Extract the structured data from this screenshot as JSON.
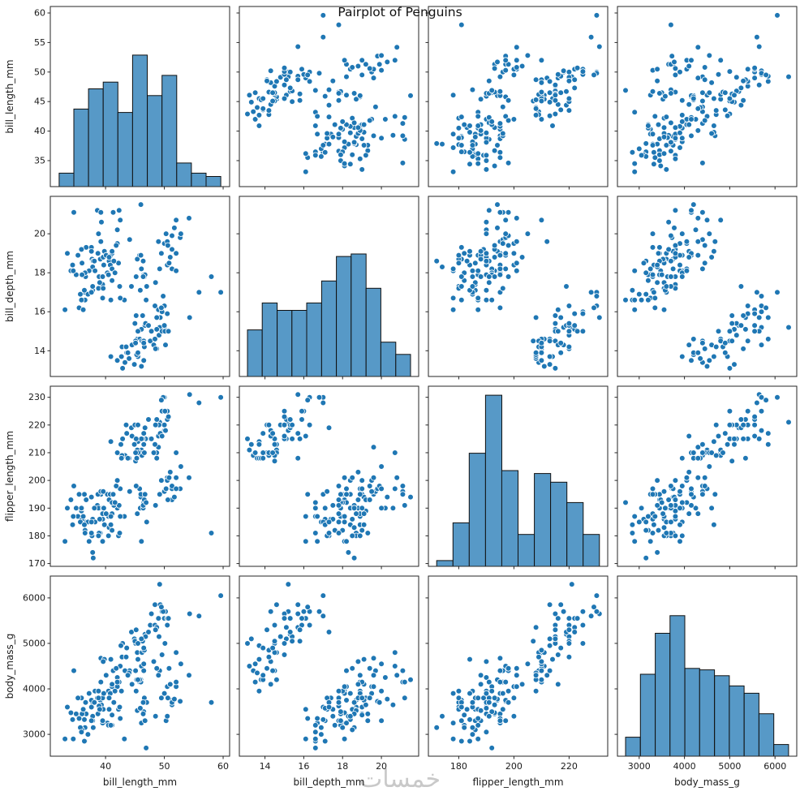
{
  "watermark": "خمسات",
  "chart_data": {
    "type": "scatter-matrix",
    "title": "Pairplot of Penguins",
    "variables": [
      "bill_length_mm",
      "bill_depth_mm",
      "flipper_length_mm",
      "body_mass_g"
    ],
    "legend": "none",
    "grid": false,
    "marker": {
      "color": "#1f77b4",
      "edge": "#ffffff",
      "radius": 3.4
    },
    "hist": {
      "fill": "#5799c7",
      "edge": "#101010"
    },
    "frame_color": "#262626",
    "text_color": "#1a1a1a",
    "axes": {
      "bill_length_mm": {
        "range": [
          30.6,
          61.1
        ],
        "yticks": [
          35,
          40,
          45,
          50,
          55,
          60
        ],
        "xticks": [
          40,
          50,
          60
        ]
      },
      "bill_depth_mm": {
        "range": [
          12.68,
          21.92
        ],
        "yticks": [
          14,
          16,
          18,
          20
        ],
        "xticks": [
          14,
          16,
          18,
          20
        ]
      },
      "flipper_length_mm": {
        "range": [
          169,
          234
        ],
        "yticks": [
          170,
          180,
          190,
          200,
          210,
          220,
          230
        ],
        "xticks": [
          180,
          200,
          220
        ]
      },
      "body_mass_g": {
        "range": [
          2520,
          6480
        ],
        "yticks": [
          3000,
          4000,
          5000,
          6000
        ],
        "xticks": [
          3000,
          4000,
          5000,
          6000
        ]
      }
    },
    "histograms": {
      "bill_length_mm": {
        "bin_edges": [
          32.1,
          34.6,
          37.1,
          39.6,
          42.1,
          44.6,
          47.1,
          49.6,
          52.1,
          54.6,
          57.1,
          59.6
        ],
        "counts": [
          4,
          23,
          29,
          31,
          22,
          39,
          27,
          33,
          7,
          4,
          3
        ],
        "peak_frac": 0.73
      },
      "bill_depth_mm": {
        "bin_edges": [
          13.1,
          13.86,
          14.63,
          15.39,
          16.15,
          16.92,
          17.68,
          18.44,
          19.21,
          19.97,
          20.74,
          21.5
        ],
        "counts": [
          19,
          30,
          27,
          27,
          30,
          39,
          49,
          50,
          36,
          14,
          9
        ],
        "peak_frac": 0.68
      },
      "flipper_length_mm": {
        "bin_edges": [
          172,
          177.9,
          183.8,
          189.7,
          195.6,
          201.5,
          207.4,
          213.3,
          219.2,
          225.1,
          231
        ],
        "counts": [
          2,
          15,
          39,
          59,
          33,
          11,
          32,
          29,
          22,
          11
        ],
        "peak_frac": 0.95
      },
      "body_mass_g": {
        "bin_edges": [
          2700,
          3027,
          3355,
          3682,
          4009,
          4336,
          4664,
          4991,
          5318,
          5645,
          5973,
          6300
        ],
        "counts": [
          13,
          56,
          84,
          96,
          60,
          59,
          55,
          48,
          43,
          29,
          8
        ],
        "peak_frac": 0.78
      }
    },
    "points": [
      [
        39.1,
        18.7,
        181,
        3750
      ],
      [
        39.5,
        17.4,
        186,
        3800
      ],
      [
        40.3,
        18.0,
        195,
        3250
      ],
      [
        36.7,
        19.3,
        193,
        3450
      ],
      [
        39.3,
        20.6,
        190,
        3650
      ],
      [
        38.9,
        17.8,
        181,
        3625
      ],
      [
        39.2,
        19.6,
        195,
        4675
      ],
      [
        34.1,
        18.1,
        193,
        3475
      ],
      [
        42.0,
        20.2,
        190,
        4250
      ],
      [
        37.8,
        17.1,
        186,
        3300
      ],
      [
        37.8,
        17.3,
        180,
        3700
      ],
      [
        41.1,
        17.6,
        182,
        3200
      ],
      [
        38.6,
        21.2,
        191,
        3800
      ],
      [
        34.6,
        21.1,
        198,
        4400
      ],
      [
        36.6,
        17.8,
        185,
        3700
      ],
      [
        38.7,
        19.0,
        195,
        3450
      ],
      [
        42.5,
        20.7,
        197,
        4500
      ],
      [
        34.4,
        18.4,
        184,
        3325
      ],
      [
        46.0,
        21.5,
        194,
        4200
      ],
      [
        37.8,
        18.3,
        174,
        3400
      ],
      [
        37.7,
        18.7,
        180,
        3600
      ],
      [
        35.9,
        19.2,
        189,
        3800
      ],
      [
        38.2,
        18.1,
        185,
        3950
      ],
      [
        38.8,
        17.2,
        180,
        3800
      ],
      [
        35.3,
        18.9,
        187,
        3800
      ],
      [
        40.6,
        18.6,
        183,
        3550
      ],
      [
        40.5,
        17.9,
        187,
        3200
      ],
      [
        37.9,
        18.6,
        172,
        3150
      ],
      [
        40.5,
        18.9,
        180,
        3950
      ],
      [
        39.5,
        16.7,
        178,
        3250
      ],
      [
        37.2,
        18.1,
        178,
        3900
      ],
      [
        39.5,
        17.8,
        188,
        3300
      ],
      [
        40.9,
        18.9,
        184,
        3900
      ],
      [
        36.4,
        17.0,
        195,
        3325
      ],
      [
        39.2,
        21.1,
        196,
        4150
      ],
      [
        38.8,
        20.0,
        190,
        3950
      ],
      [
        42.2,
        18.5,
        180,
        3550
      ],
      [
        37.6,
        19.3,
        181,
        3300
      ],
      [
        39.8,
        19.1,
        184,
        4650
      ],
      [
        36.5,
        18.0,
        182,
        3150
      ],
      [
        40.8,
        18.4,
        195,
        3900
      ],
      [
        36.0,
        18.5,
        186,
        3100
      ],
      [
        44.1,
        19.7,
        196,
        4400
      ],
      [
        37.0,
        16.9,
        185,
        3000
      ],
      [
        39.6,
        18.8,
        190,
        4600
      ],
      [
        41.1,
        19.0,
        182,
        3425
      ],
      [
        36.0,
        17.9,
        190,
        3450
      ],
      [
        42.3,
        21.2,
        191,
        4150
      ],
      [
        39.6,
        17.2,
        196,
        3550
      ],
      [
        40.1,
        18.9,
        188,
        4300
      ],
      [
        35.0,
        17.9,
        190,
        3450
      ],
      [
        42.0,
        19.5,
        200,
        4050
      ],
      [
        34.5,
        18.1,
        187,
        2900
      ],
      [
        41.4,
        18.6,
        191,
        3700
      ],
      [
        39.0,
        17.5,
        186,
        3550
      ],
      [
        40.6,
        18.8,
        193,
        3800
      ],
      [
        36.5,
        16.6,
        181,
        2850
      ],
      [
        37.6,
        19.1,
        194,
        3750
      ],
      [
        35.7,
        16.9,
        185,
        3150
      ],
      [
        41.3,
        21.1,
        195,
        4400
      ],
      [
        37.6,
        17.0,
        185,
        3600
      ],
      [
        41.1,
        18.2,
        192,
        4050
      ],
      [
        36.4,
        17.1,
        184,
        2850
      ],
      [
        41.6,
        18.0,
        192,
        3950
      ],
      [
        35.5,
        16.2,
        195,
        3350
      ],
      [
        41.1,
        19.1,
        188,
        4100
      ],
      [
        35.9,
        16.6,
        190,
        3050
      ],
      [
        41.8,
        19.4,
        198,
        4450
      ],
      [
        33.5,
        19.0,
        190,
        3600
      ],
      [
        39.7,
        18.4,
        190,
        3900
      ],
      [
        45.8,
        18.9,
        197,
        4150
      ],
      [
        33.1,
        16.1,
        178,
        2900
      ],
      [
        38.1,
        18.6,
        190,
        3700
      ],
      [
        36.2,
        16.1,
        187,
        3550
      ],
      [
        46.5,
        17.9,
        192,
        3500
      ],
      [
        50.0,
        19.5,
        196,
        3900
      ],
      [
        51.3,
        19.2,
        193,
        3650
      ],
      [
        45.4,
        18.7,
        188,
        3525
      ],
      [
        52.7,
        19.8,
        197,
        3725
      ],
      [
        45.2,
        17.8,
        198,
        3950
      ],
      [
        46.1,
        18.2,
        178,
        3250
      ],
      [
        51.3,
        18.2,
        197,
        3750
      ],
      [
        46.0,
        18.9,
        195,
        4150
      ],
      [
        51.3,
        19.9,
        198,
        3700
      ],
      [
        46.6,
        17.8,
        193,
        3800
      ],
      [
        51.7,
        20.3,
        194,
        3775
      ],
      [
        47.0,
        17.3,
        185,
        3700
      ],
      [
        52.0,
        18.1,
        201,
        4050
      ],
      [
        45.9,
        17.1,
        190,
        3575
      ],
      [
        50.5,
        19.6,
        201,
        4050
      ],
      [
        50.3,
        20.0,
        197,
        3300
      ],
      [
        58.0,
        17.8,
        181,
        3700
      ],
      [
        46.4,
        18.6,
        190,
        3450
      ],
      [
        49.2,
        18.2,
        195,
        4400
      ],
      [
        42.4,
        17.3,
        181,
        3600
      ],
      [
        48.5,
        17.5,
        191,
        3400
      ],
      [
        43.2,
        16.6,
        187,
        2900
      ],
      [
        50.6,
        19.4,
        193,
        3800
      ],
      [
        46.7,
        17.9,
        195,
        3300
      ],
      [
        52.0,
        19.0,
        197,
        4150
      ],
      [
        50.5,
        18.4,
        200,
        3400
      ],
      [
        49.5,
        19.0,
        200,
        3800
      ],
      [
        46.4,
        17.8,
        191,
        3700
      ],
      [
        52.8,
        20.0,
        205,
        4550
      ],
      [
        40.9,
        16.6,
        187,
        3200
      ],
      [
        54.2,
        20.8,
        201,
        4300
      ],
      [
        42.5,
        16.7,
        187,
        3350
      ],
      [
        51.0,
        18.8,
        203,
        4100
      ],
      [
        52.0,
        20.7,
        210,
        4800
      ],
      [
        46.9,
        16.6,
        192,
        2700
      ],
      [
        49.0,
        19.6,
        212,
        4300
      ],
      [
        50.8,
        18.5,
        201,
        4450
      ],
      [
        46.1,
        13.2,
        211,
        4500
      ],
      [
        50.0,
        16.3,
        230,
        5700
      ],
      [
        48.7,
        14.1,
        210,
        4450
      ],
      [
        50.0,
        15.2,
        218,
        5700
      ],
      [
        47.6,
        14.5,
        215,
        5400
      ],
      [
        46.5,
        13.5,
        210,
        4550
      ],
      [
        45.4,
        14.6,
        211,
        4800
      ],
      [
        46.7,
        15.3,
        219,
        5200
      ],
      [
        43.3,
        13.4,
        209,
        4400
      ],
      [
        46.8,
        15.4,
        215,
        5150
      ],
      [
        40.9,
        13.7,
        214,
        4650
      ],
      [
        49.0,
        16.1,
        216,
        5550
      ],
      [
        45.5,
        13.7,
        214,
        4650
      ],
      [
        48.4,
        14.6,
        213,
        5850
      ],
      [
        45.8,
        14.6,
        210,
        4200
      ],
      [
        49.3,
        15.7,
        217,
        5850
      ],
      [
        42.0,
        13.5,
        210,
        4150
      ],
      [
        49.2,
        15.2,
        221,
        6300
      ],
      [
        46.2,
        14.5,
        209,
        4800
      ],
      [
        48.7,
        15.1,
        222,
        5350
      ],
      [
        50.2,
        14.3,
        218,
        5700
      ],
      [
        45.1,
        14.5,
        215,
        5000
      ],
      [
        46.5,
        14.5,
        213,
        4400
      ],
      [
        46.3,
        15.8,
        215,
        5050
      ],
      [
        42.9,
        13.1,
        215,
        5000
      ],
      [
        46.1,
        15.1,
        215,
        5100
      ],
      [
        44.5,
        14.3,
        216,
        4100
      ],
      [
        47.8,
        15.0,
        215,
        5650
      ],
      [
        48.2,
        14.3,
        210,
        4600
      ],
      [
        50.0,
        15.3,
        220,
        5550
      ],
      [
        47.3,
        15.3,
        222,
        5250
      ],
      [
        42.8,
        14.2,
        209,
        4700
      ],
      [
        45.1,
        14.5,
        207,
        5050
      ],
      [
        59.6,
        17.0,
        230,
        6050
      ],
      [
        49.1,
        14.8,
        220,
        5150
      ],
      [
        48.4,
        16.3,
        220,
        5400
      ],
      [
        42.6,
        13.7,
        213,
        4950
      ],
      [
        44.4,
        17.3,
        219,
        5250
      ],
      [
        44.0,
        13.6,
        208,
        4350
      ],
      [
        48.7,
        15.7,
        208,
        5350
      ],
      [
        42.7,
        13.7,
        208,
        3950
      ],
      [
        49.6,
        16.0,
        225,
        5700
      ],
      [
        45.3,
        13.8,
        208,
        4200
      ],
      [
        49.6,
        15.0,
        216,
        4750
      ],
      [
        50.5,
        15.9,
        222,
        5550
      ],
      [
        43.6,
        13.9,
        217,
        4900
      ],
      [
        45.5,
        13.9,
        210,
        4200
      ],
      [
        50.5,
        15.9,
        225,
        5400
      ],
      [
        44.9,
        13.3,
        213,
        5100
      ],
      [
        45.2,
        15.8,
        215,
        5300
      ],
      [
        46.6,
        14.2,
        210,
        4850
      ],
      [
        48.5,
        14.1,
        220,
        5300
      ],
      [
        45.1,
        14.4,
        210,
        4400
      ],
      [
        50.1,
        15.0,
        225,
        5000
      ],
      [
        46.5,
        14.4,
        217,
        4900
      ],
      [
        45.0,
        15.4,
        220,
        5050
      ],
      [
        43.8,
        13.9,
        208,
        4300
      ],
      [
        45.5,
        15.0,
        220,
        5000
      ],
      [
        54.3,
        15.7,
        231,
        5650
      ],
      [
        49.8,
        16.8,
        230,
        5700
      ],
      [
        55.9,
        17.0,
        228,
        5600
      ],
      [
        49.5,
        16.2,
        229,
        5800
      ],
      [
        43.5,
        14.2,
        220,
        4700
      ],
      [
        50.7,
        15.0,
        223,
        5550
      ]
    ]
  }
}
